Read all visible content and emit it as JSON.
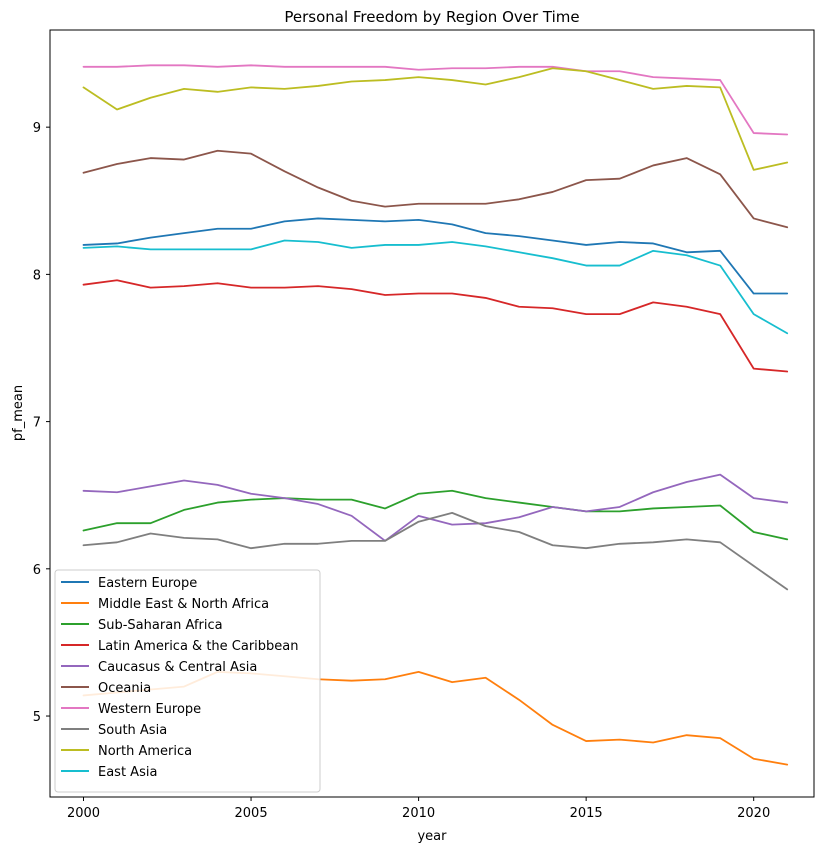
{
  "chart_data": {
    "type": "line",
    "title": "Personal Freedom by Region Over Time",
    "xlabel": "year",
    "ylabel": "pf_mean",
    "xlim": [
      1999.0,
      2021.8
    ],
    "ylim": [
      4.45,
      9.66
    ],
    "xticks": [
      2000,
      2005,
      2010,
      2015,
      2020
    ],
    "yticks": [
      5,
      6,
      7,
      8,
      9
    ],
    "grid": false,
    "legend_position": "lower-left",
    "x": [
      2000,
      2001,
      2002,
      2003,
      2004,
      2005,
      2006,
      2007,
      2008,
      2009,
      2010,
      2011,
      2012,
      2013,
      2014,
      2015,
      2016,
      2017,
      2018,
      2019,
      2020,
      2021
    ],
    "series": [
      {
        "name": "Eastern Europe",
        "color": "#1f77b4",
        "values": [
          8.2,
          8.21,
          8.25,
          8.28,
          8.31,
          8.31,
          8.36,
          8.38,
          8.37,
          8.36,
          8.37,
          8.34,
          8.28,
          8.26,
          8.23,
          8.2,
          8.22,
          8.21,
          8.15,
          8.16,
          7.87,
          7.87
        ]
      },
      {
        "name": "Middle East & North Africa",
        "color": "#ff7f0e",
        "values": [
          5.14,
          5.16,
          5.18,
          5.2,
          5.3,
          5.29,
          5.27,
          5.25,
          5.24,
          5.25,
          5.3,
          5.23,
          5.26,
          5.11,
          4.94,
          4.83,
          4.84,
          4.82,
          4.87,
          4.85,
          4.71,
          4.67
        ]
      },
      {
        "name": "Sub-Saharan Africa",
        "color": "#2ca02c",
        "values": [
          6.26,
          6.31,
          6.31,
          6.4,
          6.45,
          6.47,
          6.48,
          6.47,
          6.47,
          6.41,
          6.51,
          6.53,
          6.48,
          6.45,
          6.42,
          6.39,
          6.39,
          6.41,
          6.42,
          6.43,
          6.25,
          6.2
        ]
      },
      {
        "name": "Latin America & the Caribbean",
        "color": "#d62728",
        "values": [
          7.93,
          7.96,
          7.91,
          7.92,
          7.94,
          7.91,
          7.91,
          7.92,
          7.9,
          7.86,
          7.87,
          7.87,
          7.84,
          7.78,
          7.77,
          7.73,
          7.73,
          7.81,
          7.78,
          7.73,
          7.36,
          7.34
        ]
      },
      {
        "name": "Caucasus & Central Asia",
        "color": "#9467bd",
        "values": [
          6.53,
          6.52,
          6.56,
          6.6,
          6.57,
          6.51,
          6.48,
          6.44,
          6.36,
          6.19,
          6.36,
          6.3,
          6.31,
          6.35,
          6.42,
          6.39,
          6.42,
          6.52,
          6.59,
          6.64,
          6.48,
          6.45
        ]
      },
      {
        "name": "Oceania",
        "color": "#8c564b",
        "values": [
          8.69,
          8.75,
          8.79,
          8.78,
          8.84,
          8.82,
          8.7,
          8.59,
          8.5,
          8.46,
          8.48,
          8.48,
          8.48,
          8.51,
          8.56,
          8.64,
          8.65,
          8.74,
          8.79,
          8.68,
          8.38,
          8.32
        ]
      },
      {
        "name": "Western Europe",
        "color": "#e377c2",
        "values": [
          9.41,
          9.41,
          9.42,
          9.42,
          9.41,
          9.42,
          9.41,
          9.41,
          9.41,
          9.41,
          9.39,
          9.4,
          9.4,
          9.41,
          9.41,
          9.38,
          9.38,
          9.34,
          9.33,
          9.32,
          8.96,
          8.95
        ]
      },
      {
        "name": "South Asia",
        "color": "#7f7f7f",
        "values": [
          6.16,
          6.18,
          6.24,
          6.21,
          6.2,
          6.14,
          6.17,
          6.17,
          6.19,
          6.19,
          6.32,
          6.38,
          6.29,
          6.25,
          6.16,
          6.14,
          6.17,
          6.18,
          6.2,
          6.18,
          6.02,
          5.86
        ]
      },
      {
        "name": "North America",
        "color": "#bcbd22",
        "values": [
          9.27,
          9.12,
          9.2,
          9.26,
          9.24,
          9.27,
          9.26,
          9.28,
          9.31,
          9.32,
          9.34,
          9.32,
          9.29,
          9.34,
          9.4,
          9.38,
          9.32,
          9.26,
          9.28,
          9.27,
          8.71,
          8.76
        ]
      },
      {
        "name": "East Asia",
        "color": "#17becf",
        "values": [
          8.18,
          8.19,
          8.17,
          8.17,
          8.17,
          8.17,
          8.23,
          8.22,
          8.18,
          8.2,
          8.2,
          8.22,
          8.19,
          8.15,
          8.11,
          8.06,
          8.06,
          8.16,
          8.13,
          8.06,
          7.73,
          7.6
        ]
      }
    ]
  }
}
